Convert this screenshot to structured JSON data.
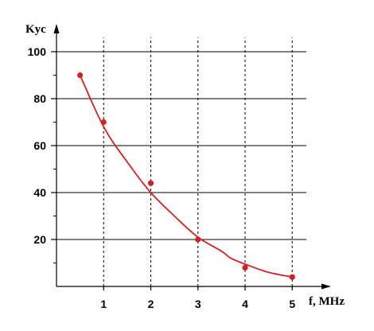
{
  "chart_data": {
    "type": "scatter",
    "title": "",
    "xlabel": "f, MHz",
    "ylabel": "Kyc",
    "xlim": [
      0,
      5.8
    ],
    "ylim": [
      0,
      103
    ],
    "x_ticks": [
      1,
      2,
      3,
      4,
      5
    ],
    "y_ticks": [
      20,
      40,
      60,
      80,
      100
    ],
    "x_tick_labels": [
      "1",
      "2",
      "3",
      "4",
      "5"
    ],
    "y_tick_labels": [
      "20",
      "40",
      "60",
      "80",
      "100"
    ],
    "y_minor_ticks": [
      10,
      30,
      50,
      70,
      90
    ],
    "grid": {
      "horizontal": "solid",
      "vertical": "dashed"
    },
    "marker_color": "#d42020",
    "line_color": "#d42020",
    "series": [
      {
        "points": [
          {
            "x": 0.5,
            "y": 90
          },
          {
            "x": 1,
            "y": 70
          },
          {
            "x": 2,
            "y": 44
          },
          {
            "x": 3,
            "y": 20
          },
          {
            "x": 4,
            "y": 8
          },
          {
            "x": 5,
            "y": 4
          }
        ],
        "fit_curve": [
          {
            "x": 0.5,
            "y": 90
          },
          {
            "x": 1,
            "y": 68
          },
          {
            "x": 1.5,
            "y": 53
          },
          {
            "x": 2,
            "y": 40
          },
          {
            "x": 2.5,
            "y": 30
          },
          {
            "x": 3,
            "y": 21
          },
          {
            "x": 3.5,
            "y": 15
          },
          {
            "x": 3.7,
            "y": 12
          },
          {
            "x": 4,
            "y": 9.5
          },
          {
            "x": 4.5,
            "y": 6
          },
          {
            "x": 5,
            "y": 4
          }
        ]
      }
    ]
  }
}
